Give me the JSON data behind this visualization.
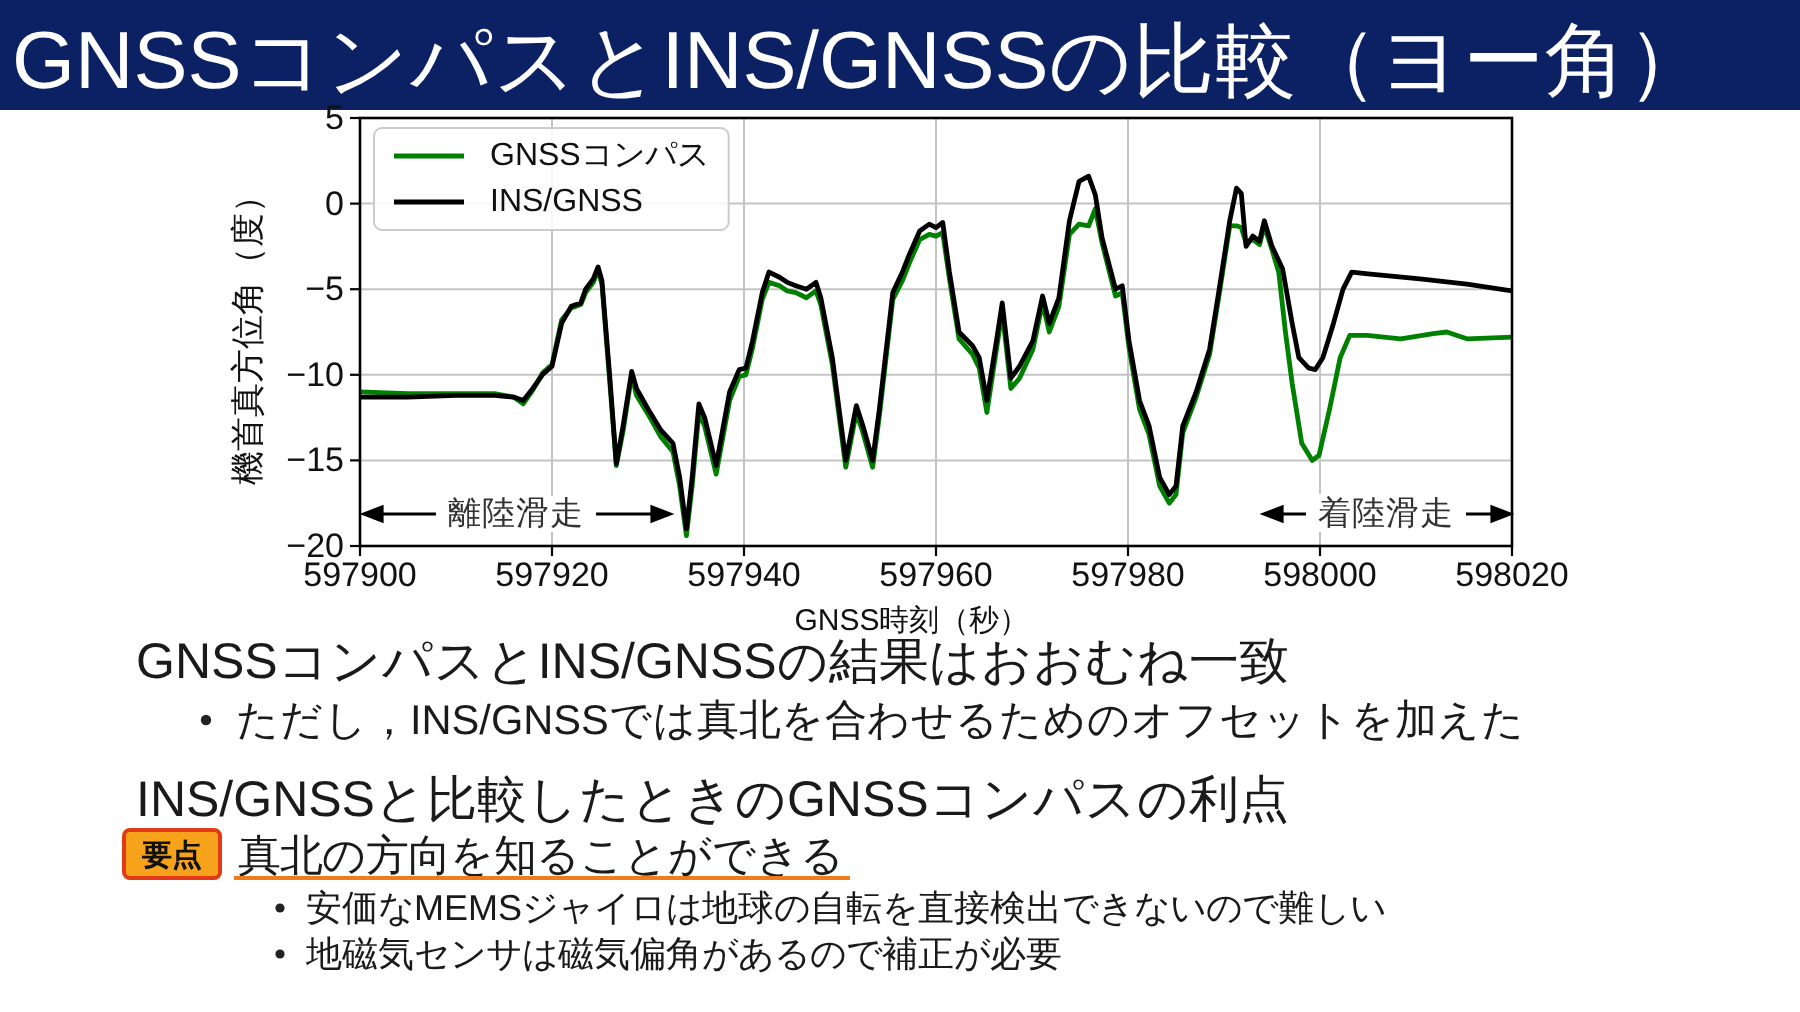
{
  "chart_data": {
    "type": "line",
    "title": "GNSSコンパスとINS/GNSSの比較（ヨー角）",
    "xlabel": "GNSS時刻（秒）",
    "ylabel": "機首真方位角（度）",
    "xlim": [
      597900,
      598020
    ],
    "ylim": [
      -20,
      5
    ],
    "xticks": [
      597900,
      597920,
      597940,
      597960,
      597980,
      598000,
      598020
    ],
    "yticks": [
      {
        "value": -20,
        "label": "−20"
      },
      {
        "value": -15,
        "label": "−15"
      },
      {
        "value": -10,
        "label": "−10"
      },
      {
        "value": -5,
        "label": "−5"
      },
      0,
      5
    ],
    "grid": true,
    "legend": "top left",
    "series": [
      {
        "name": "GNSSコンパス",
        "color": "#008000",
        "x": [
          597900,
          597905,
          597910,
          597914,
          597916,
          597917,
          597918,
          597919,
          597920,
          597921,
          597922,
          597923,
          597923.5,
          597924.3,
          597924.8,
          597925.2,
          597926,
          597926.7,
          597927.4,
          597928.3,
          597928.8,
          597930,
          597931.3,
          597932.6,
          597933.3,
          597934,
          597934.6,
          597935.3,
          597935.9,
          597937.1,
          597938.5,
          597939.5,
          597940.2,
          597940.9,
          597941.9,
          597942.6,
          597943.7,
          597944.5,
          597945.4,
          597946.5,
          597947.5,
          597948,
          597949.2,
          597950.6,
          597951.7,
          597952.4,
          597953.4,
          597954.1,
          597955.5,
          597956.5,
          597957.2,
          597958.3,
          597959.3,
          597960,
          597960.7,
          597961.4,
          597962.4,
          597963.8,
          597964.5,
          597965.3,
          597966.3,
          597966.9,
          597967.8,
          597968.7,
          597970.1,
          597971.1,
          597971.8,
          597972.8,
          597973.9,
          597974.9,
          597975.9,
          597976.6,
          597977.3,
          597978.7,
          597979.4,
          597980.1,
          597981.2,
          597982.2,
          597983.3,
          597984.3,
          597985,
          597985.7,
          597987.1,
          597988.5,
          597989.5,
          597990.6,
          597991.3,
          597991.8,
          597992.3,
          597993,
          597993.7,
          597994.2,
          597995,
          597995.7,
          597996.4,
          597997.1,
          597998.1,
          597999.2,
          597999.9,
          598001,
          598002.1,
          598003.1,
          598004.9,
          598008.4,
          598011.8,
          598013.2,
          598015.3,
          598020
        ],
        "values": [
          -11.0,
          -11.1,
          -11.1,
          -11.1,
          -11.3,
          -11.7,
          -10.9,
          -9.9,
          -9.4,
          -6.8,
          -6.1,
          -5.9,
          -5.2,
          -4.6,
          -3.9,
          -4.7,
          -10.3,
          -15.3,
          -13.3,
          -10,
          -11.2,
          -12.3,
          -13.6,
          -14.5,
          -16.5,
          -19.4,
          -16.5,
          -12.2,
          -13,
          -15.8,
          -11.5,
          -10.1,
          -10,
          -8.4,
          -5.6,
          -4.6,
          -4.8,
          -5.1,
          -5.2,
          -5.5,
          -5.1,
          -5.9,
          -9.4,
          -15.4,
          -12.2,
          -13.4,
          -15.4,
          -12.4,
          -5.6,
          -4.5,
          -3.5,
          -2.1,
          -1.8,
          -1.9,
          -1.7,
          -4.4,
          -7.9,
          -8.8,
          -9.6,
          -12.2,
          -8.5,
          -6.3,
          -10.8,
          -10.2,
          -8.5,
          -5.8,
          -7.5,
          -6,
          -1.8,
          -1.2,
          -1.3,
          -0.3,
          -2.3,
          -5.4,
          -5.2,
          -8.4,
          -12,
          -13.5,
          -16.5,
          -17.5,
          -17,
          -13.4,
          -11.3,
          -8.8,
          -5.3,
          -1.3,
          -1.3,
          -1.4,
          -2.3,
          -2.1,
          -2.4,
          -1.3,
          -2.7,
          -4,
          -7.5,
          -10.5,
          -14,
          -15,
          -14.7,
          -12,
          -9,
          -7.7,
          -7.7,
          -7.9,
          -7.6,
          -7.5,
          -7.9,
          -7.8
        ]
      },
      {
        "name": "INS/GNSS",
        "color": "#000000",
        "x": [
          597900,
          597905,
          597910,
          597914,
          597916,
          597917,
          597918,
          597919,
          597920,
          597921,
          597922,
          597923,
          597923.5,
          597924.3,
          597924.8,
          597925.2,
          597926,
          597926.7,
          597927.4,
          597928.3,
          597928.8,
          597930,
          597931.3,
          597932.6,
          597933.3,
          597934,
          597934.6,
          597935.3,
          597935.9,
          597937.1,
          597938.5,
          597939.5,
          597940.2,
          597940.9,
          597941.9,
          597942.6,
          597943.7,
          597944.5,
          597945.4,
          597946.5,
          597947.5,
          597948,
          597949.2,
          597950.6,
          597951.7,
          597952.4,
          597953.4,
          597954.1,
          597955.5,
          597956.5,
          597957.2,
          597958.3,
          597959.3,
          597960,
          597960.7,
          597961.4,
          597962.4,
          597963.8,
          597964.5,
          597965.3,
          597966.3,
          597966.9,
          597967.8,
          597968.7,
          597970.1,
          597971.1,
          597971.8,
          597972.8,
          597973.9,
          597974.9,
          597975.9,
          597976.6,
          597977.3,
          597978.7,
          597979.4,
          597980.1,
          597981.2,
          597982.2,
          597983.3,
          597984.3,
          597985,
          597985.7,
          597987.1,
          597988.5,
          597989.5,
          597990.6,
          597991.3,
          597991.8,
          597992.3,
          597993,
          597993.7,
          597994.2,
          597995,
          597996.1,
          597997.1,
          597997.8,
          597998.8,
          597999.5,
          598000.3,
          598001.4,
          598002.4,
          598003.3,
          598005,
          598010.4,
          598015.3,
          598020
        ],
        "values": [
          -11.3,
          -11.3,
          -11.2,
          -11.2,
          -11.3,
          -11.5,
          -10.8,
          -10.0,
          -9.5,
          -7.0,
          -6.0,
          -5.8,
          -5.0,
          -4.4,
          -3.7,
          -4.5,
          -10,
          -15.2,
          -13,
          -9.8,
          -10.8,
          -12,
          -13.2,
          -14,
          -16,
          -19,
          -16,
          -11.7,
          -12.5,
          -15.3,
          -11,
          -9.7,
          -9.6,
          -8,
          -5.2,
          -4,
          -4.3,
          -4.6,
          -4.8,
          -5,
          -4.6,
          -5.5,
          -9,
          -15,
          -11.8,
          -13,
          -15,
          -12,
          -5.2,
          -4,
          -3,
          -1.6,
          -1.2,
          -1.4,
          -1.1,
          -4,
          -7.5,
          -8.3,
          -9,
          -11.5,
          -8,
          -5.8,
          -10.2,
          -9.5,
          -8,
          -5.4,
          -7,
          -5.5,
          -1,
          1.3,
          1.6,
          0.5,
          -2,
          -5,
          -4.8,
          -8,
          -11.5,
          -13,
          -16,
          -17,
          -16.5,
          -13,
          -11,
          -8.5,
          -5,
          -1,
          0.9,
          0.6,
          -2.5,
          -1.9,
          -2.2,
          -1,
          -2.5,
          -3.8,
          -7,
          -9,
          -9.6,
          -9.7,
          -9,
          -7,
          -5,
          -4,
          -4.1,
          -4.4,
          -4.7,
          -5.1
        ]
      }
    ],
    "annotations": [
      "離陸滑走",
      "着陸滑走",
      "GNSSコンパスとINS/GNSSの結果はおおむね一致",
      "ただし，INS/GNSSでは真北を合わせるためのオフセットを加えた",
      "INS/GNSSと比較したときのGNSSコンパスの利点",
      "要点",
      "真北の方向を知ることができる",
      "安価なMEMSジャイロは地球の自転を直接検出できないので難しい",
      "地磁気センサは磁気偏角があるので補正が必要"
    ]
  }
}
